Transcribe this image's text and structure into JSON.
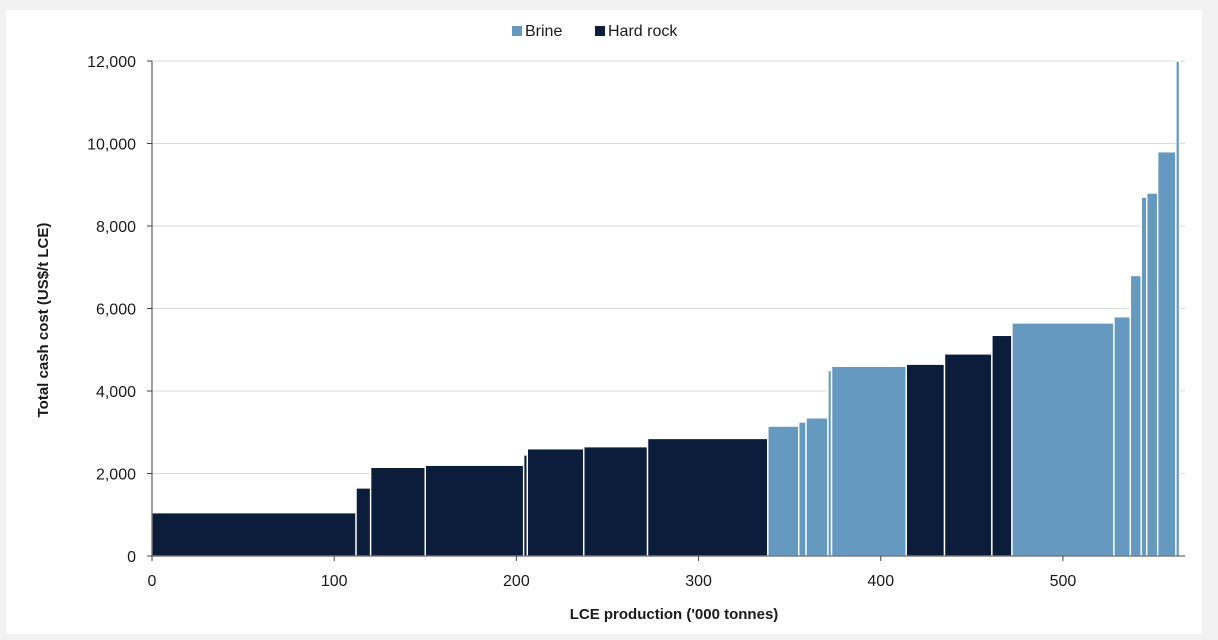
{
  "chart_data": {
    "type": "bar",
    "subtype": "cost-curve",
    "title": "",
    "xlabel": "LCE production ('000 tonnes)",
    "ylabel": "Total cash cost (US$/t LCE)",
    "xlim": [
      0,
      567
    ],
    "ylim": [
      0,
      12000
    ],
    "xticks": [
      0,
      100,
      200,
      300,
      400,
      500
    ],
    "xtick_labels": [
      "0",
      "100",
      "200",
      "300",
      "400",
      "500"
    ],
    "yticks": [
      0,
      2000,
      4000,
      6000,
      8000,
      10000,
      12000
    ],
    "ytick_labels": [
      "0",
      "2,000",
      "4,000",
      "6,000",
      "8,000",
      "10,000",
      "12,000"
    ],
    "grid": "horizontal",
    "legend_position": "top-center",
    "colors": {
      "Brine": "#6699c0",
      "Hard rock": "#0b1d3a"
    },
    "series": [
      {
        "name": "Brine"
      },
      {
        "name": "Hard rock"
      }
    ],
    "segments": [
      {
        "type": "Hard rock",
        "width": 112,
        "cost": 1050
      },
      {
        "type": "Hard rock",
        "width": 8,
        "cost": 1650
      },
      {
        "type": "Hard rock",
        "width": 30,
        "cost": 2150
      },
      {
        "type": "Hard rock",
        "width": 54,
        "cost": 2200
      },
      {
        "type": "Hard rock",
        "width": 2,
        "cost": 2450
      },
      {
        "type": "Hard rock",
        "width": 31,
        "cost": 2600
      },
      {
        "type": "Hard rock",
        "width": 35,
        "cost": 2650
      },
      {
        "type": "Hard rock",
        "width": 66,
        "cost": 2850
      },
      {
        "type": "Brine",
        "width": 17,
        "cost": 3150
      },
      {
        "type": "Brine",
        "width": 4,
        "cost": 3250
      },
      {
        "type": "Brine",
        "width": 12,
        "cost": 3350
      },
      {
        "type": "Brine",
        "width": 2,
        "cost": 4500
      },
      {
        "type": "Brine",
        "width": 41,
        "cost": 4600
      },
      {
        "type": "Hard rock",
        "width": 21,
        "cost": 4650
      },
      {
        "type": "Hard rock",
        "width": 26,
        "cost": 4900
      },
      {
        "type": "Hard rock",
        "width": 11,
        "cost": 5350
      },
      {
        "type": "Brine",
        "width": 56,
        "cost": 5650
      },
      {
        "type": "Brine",
        "width": 9,
        "cost": 5800
      },
      {
        "type": "Brine",
        "width": 6,
        "cost": 6800
      },
      {
        "type": "Brine",
        "width": 3,
        "cost": 8700
      },
      {
        "type": "Brine",
        "width": 6,
        "cost": 8800
      },
      {
        "type": "Brine",
        "width": 10,
        "cost": 9800
      },
      {
        "type": "Brine",
        "width": 2,
        "cost": 12000
      }
    ]
  }
}
